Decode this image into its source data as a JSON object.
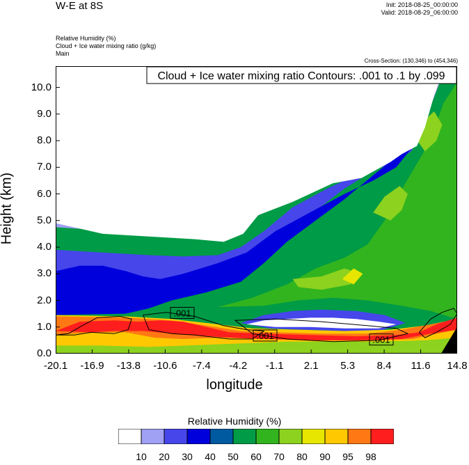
{
  "header": {
    "title": "W-E at 8S",
    "init": "Init: 2018-08-25_00:00:00",
    "valid": "Valid: 2018-08-29_06:00:00",
    "fields": [
      "Relative Humidity   (%)",
      "Cloud + Ice water mixing ratio   (g/kg)",
      "Main"
    ],
    "cross_section": "Cross-Section: (130,346) to (454,346)"
  },
  "chart_data": {
    "type": "heatmap",
    "title": "W-E at 8S",
    "xlabel": "longitude",
    "ylabel": "Height (km)",
    "xlim": [
      -20.1,
      14.8
    ],
    "ylim": [
      0.0,
      10.8
    ],
    "x_ticks": [
      "-20.1",
      "-16.9",
      "-13.8",
      "-10.6",
      "-7.4",
      "-4.2",
      "-1.1",
      "2.1",
      "5.3",
      "8.4",
      "11.6",
      "14.8"
    ],
    "y_ticks": [
      0.0,
      1.0,
      2.0,
      3.0,
      4.0,
      5.0,
      6.0,
      7.0,
      8.0,
      9.0,
      10.0
    ],
    "y_tick_labels": [
      "0.0",
      "1.0",
      "2.0",
      "3.0",
      "4.0",
      "5.0",
      "6.0",
      "7.0",
      "8.0",
      "9.0",
      "10.0"
    ],
    "contour_title": "Cloud + Ice water mixing ratio Contours: .001 to .1 by .099",
    "contour_labels": [
      {
        "text": ".001",
        "x": -10.0,
        "y": 1.4
      },
      {
        "text": ".001",
        "x": -2.8,
        "y": 0.55
      },
      {
        "text": ".001",
        "x": 7.3,
        "y": 0.4
      }
    ],
    "colorbar": {
      "title": "Relative Humidity  (%)",
      "levels": [
        "10",
        "20",
        "30",
        "40",
        "50",
        "60",
        "70",
        "80",
        "90",
        "95",
        "98"
      ],
      "colors": [
        "#ffffff",
        "#a0a0f5",
        "#4646eb",
        "#0000dc",
        "#005aa0",
        "#009b46",
        "#32b41e",
        "#8cd21e",
        "#e6e600",
        "#ffc800",
        "#ff7814",
        "#ff1e1e"
      ]
    },
    "rh_regions": {
      "upper_dry_top": [
        [
          -20.1,
          10.8
        ],
        [
          14.8,
          10.8
        ],
        [
          14.8,
          10.6
        ],
        [
          13.4,
          10.4
        ],
        [
          12.8,
          9.7
        ],
        [
          12.0,
          8.5
        ],
        [
          11.3,
          7.8
        ],
        [
          10.0,
          7.5
        ],
        [
          9.0,
          7.2
        ],
        [
          6.5,
          6.6
        ],
        [
          4.0,
          6.4
        ],
        [
          0.5,
          5.7
        ],
        [
          -2.5,
          5.2
        ],
        [
          -3.8,
          4.5
        ],
        [
          -5.5,
          4.2
        ],
        [
          -8.0,
          4.3
        ],
        [
          -12.0,
          4.4
        ],
        [
          -16.0,
          4.5
        ],
        [
          -20.1,
          4.9
        ]
      ],
      "l20": [
        [
          -20.1,
          10.1
        ],
        [
          -19.0,
          9.1
        ],
        [
          -16.0,
          9.0
        ],
        [
          -12.0,
          9.1
        ],
        [
          -8.0,
          9.35
        ],
        [
          -5.0,
          9.6
        ],
        [
          -3.0,
          9.85
        ],
        [
          -1.5,
          10.25
        ],
        [
          -1.0,
          10.8
        ],
        [
          14.8,
          10.8
        ],
        [
          14.8,
          10.7
        ],
        [
          13.3,
          10.2
        ],
        [
          12.5,
          9.3
        ],
        [
          11.7,
          8.3
        ],
        [
          10.7,
          7.7
        ],
        [
          9.0,
          7.4
        ],
        [
          6.5,
          7.0
        ],
        [
          4.0,
          6.5
        ],
        [
          0.8,
          5.9
        ],
        [
          -2.2,
          5.3
        ],
        [
          -4.0,
          4.6
        ],
        [
          -6.0,
          4.3
        ],
        [
          -9.0,
          4.5
        ],
        [
          -13.0,
          4.6
        ],
        [
          -16.5,
          4.65
        ],
        [
          -20.1,
          4.75
        ]
      ],
      "l30": [
        [
          -20.1,
          3.9
        ],
        [
          -16.0,
          3.8
        ],
        [
          -12.0,
          3.7
        ],
        [
          -9.0,
          3.65
        ],
        [
          -6.0,
          3.7
        ],
        [
          -4.0,
          4.0
        ],
        [
          -2.0,
          4.6
        ],
        [
          0.5,
          5.5
        ],
        [
          3.5,
          6.2
        ],
        [
          6.5,
          6.8
        ],
        [
          9.0,
          7.1
        ],
        [
          10.8,
          7.6
        ],
        [
          11.8,
          8.4
        ],
        [
          12.6,
          9.4
        ],
        [
          13.0,
          10.0
        ],
        [
          12.5,
          9.9
        ],
        [
          11.5,
          8.6
        ],
        [
          10.0,
          7.6
        ],
        [
          8.0,
          7.0
        ],
        [
          5.0,
          6.2
        ],
        [
          2.0,
          5.2
        ],
        [
          -0.5,
          4.4
        ],
        [
          -2.5,
          3.6
        ],
        [
          -5.0,
          3.0
        ],
        [
          -8.0,
          2.8
        ],
        [
          -11.0,
          2.5
        ],
        [
          -13.0,
          2.1
        ],
        [
          -15.0,
          1.9
        ],
        [
          -20.1,
          1.7
        ]
      ],
      "l40": [
        [
          -20.1,
          3.1
        ],
        [
          -18.0,
          3.3
        ],
        [
          -16.0,
          3.3
        ],
        [
          -14.0,
          3.1
        ],
        [
          -12.5,
          2.9
        ],
        [
          -11.0,
          2.8
        ],
        [
          -9.0,
          3.0
        ],
        [
          -6.0,
          3.4
        ],
        [
          -3.5,
          3.8
        ],
        [
          -1.0,
          4.6
        ],
        [
          2.0,
          5.3
        ],
        [
          5.0,
          6.0
        ],
        [
          7.5,
          6.5
        ],
        [
          9.5,
          7.0
        ],
        [
          11.0,
          7.8
        ],
        [
          12.0,
          8.8
        ],
        [
          12.6,
          9.8
        ],
        [
          12.0,
          8.9
        ],
        [
          10.8,
          8.0
        ],
        [
          9.5,
          7.4
        ],
        [
          7.5,
          6.7
        ],
        [
          5.0,
          5.8
        ],
        [
          2.5,
          5.0
        ],
        [
          0.0,
          4.2
        ],
        [
          -2.0,
          3.4
        ],
        [
          -4.0,
          2.7
        ],
        [
          -7.0,
          2.3
        ],
        [
          -10.0,
          2.0
        ],
        [
          -12.0,
          1.7
        ],
        [
          -14.0,
          1.5
        ],
        [
          -20.1,
          1.45
        ]
      ],
      "l60": [
        [
          -12.0,
          1.55
        ],
        [
          -9.0,
          1.9
        ],
        [
          -6.0,
          2.2
        ],
        [
          -3.0,
          2.6
        ],
        [
          -0.5,
          3.2
        ],
        [
          2.0,
          4.0
        ],
        [
          4.5,
          4.8
        ],
        [
          7.0,
          5.6
        ],
        [
          9.0,
          6.3
        ],
        [
          10.5,
          7.0
        ],
        [
          11.5,
          7.8
        ],
        [
          12.3,
          8.7
        ],
        [
          13.0,
          9.6
        ],
        [
          13.7,
          10.5
        ],
        [
          14.8,
          10.8
        ],
        [
          14.8,
          1.2
        ],
        [
          12.0,
          1.5
        ],
        [
          10.0,
          1.4
        ],
        [
          7.0,
          1.45
        ],
        [
          4.0,
          1.6
        ],
        [
          1.0,
          1.7
        ],
        [
          -2.0,
          1.6
        ],
        [
          -5.0,
          1.5
        ],
        [
          -9.0,
          1.45
        ]
      ],
      "l70": [
        [
          -6.0,
          1.75
        ],
        [
          -3.0,
          2.1
        ],
        [
          0.0,
          2.6
        ],
        [
          2.5,
          3.2
        ],
        [
          5.0,
          3.6
        ],
        [
          7.0,
          4.1
        ],
        [
          8.5,
          5.0
        ],
        [
          9.5,
          5.8
        ],
        [
          10.7,
          6.7
        ],
        [
          11.8,
          7.5
        ],
        [
          12.7,
          8.3
        ],
        [
          13.6,
          9.4
        ],
        [
          14.8,
          10.2
        ],
        [
          14.8,
          1.3
        ],
        [
          12.5,
          1.6
        ],
        [
          10.0,
          1.8
        ],
        [
          7.0,
          2.0
        ],
        [
          4.0,
          2.1
        ],
        [
          1.0,
          2.0
        ],
        [
          -2.0,
          1.8
        ]
      ],
      "l80": [
        [
          7.5,
          5.3
        ],
        [
          9.0,
          5.0
        ],
        [
          10.0,
          5.4
        ],
        [
          10.5,
          6.0
        ],
        [
          9.8,
          6.3
        ],
        [
          8.5,
          5.9
        ]
      ],
      "l80b": [
        [
          11.0,
          8.2
        ],
        [
          12.0,
          7.6
        ],
        [
          13.0,
          8.0
        ],
        [
          13.5,
          8.6
        ],
        [
          12.8,
          9.1
        ],
        [
          11.8,
          8.7
        ]
      ],
      "l80c": [
        [
          0.5,
          2.8
        ],
        [
          3.0,
          2.9
        ],
        [
          5.0,
          3.2
        ],
        [
          6.5,
          3.0
        ],
        [
          5.5,
          2.6
        ],
        [
          3.0,
          2.4
        ],
        [
          1.0,
          2.5
        ]
      ],
      "l90": [
        [
          4.8,
          2.8
        ],
        [
          5.8,
          3.2
        ],
        [
          6.6,
          3.0
        ],
        [
          5.8,
          2.6
        ]
      ],
      "mid_dry": [
        [
          -3.5,
          1.1
        ],
        [
          -2.0,
          1.25
        ],
        [
          0.0,
          1.3
        ],
        [
          2.0,
          1.35
        ],
        [
          4.0,
          1.35
        ],
        [
          6.0,
          1.3
        ],
        [
          8.0,
          1.2
        ],
        [
          9.5,
          1.1
        ],
        [
          8.0,
          0.95
        ],
        [
          5.0,
          0.95
        ],
        [
          2.0,
          1.0
        ],
        [
          -1.0,
          1.0
        ]
      ],
      "mid_blue": [
        [
          -4.0,
          1.15
        ],
        [
          -2.0,
          1.45
        ],
        [
          0.5,
          1.6
        ],
        [
          3.0,
          1.65
        ],
        [
          6.0,
          1.6
        ],
        [
          8.5,
          1.45
        ],
        [
          10.3,
          1.15
        ],
        [
          8.0,
          0.85
        ],
        [
          5.0,
          0.85
        ],
        [
          1.5,
          0.9
        ],
        [
          -1.5,
          0.95
        ]
      ],
      "low_green": [
        [
          -20.1,
          0.0
        ],
        [
          14.8,
          0.0
        ],
        [
          14.8,
          1.0
        ],
        [
          12.0,
          0.9
        ],
        [
          10.0,
          0.75
        ],
        [
          6.0,
          0.7
        ],
        [
          2.0,
          0.75
        ],
        [
          -2.0,
          0.85
        ],
        [
          -5.0,
          0.95
        ],
        [
          -9.0,
          1.15
        ],
        [
          -13.0,
          1.35
        ],
        [
          -20.1,
          1.45
        ]
      ],
      "low_yellow": [
        [
          -20.1,
          0.3
        ],
        [
          -16.0,
          0.3
        ],
        [
          -12.0,
          0.25
        ],
        [
          -9.0,
          0.3
        ],
        [
          -6.0,
          0.35
        ],
        [
          -3.0,
          0.4
        ],
        [
          0.0,
          0.45
        ],
        [
          4.0,
          0.45
        ],
        [
          8.0,
          0.45
        ],
        [
          12.0,
          0.5
        ],
        [
          14.8,
          0.6
        ],
        [
          14.8,
          1.25
        ],
        [
          12.0,
          1.05
        ],
        [
          9.0,
          0.9
        ],
        [
          5.0,
          0.85
        ],
        [
          1.0,
          0.9
        ],
        [
          -3.0,
          0.95
        ],
        [
          -6.0,
          1.1
        ],
        [
          -10.0,
          1.3
        ],
        [
          -14.0,
          1.4
        ],
        [
          -20.1,
          1.45
        ]
      ],
      "low_orange": [
        [
          -20.1,
          0.7
        ],
        [
          -17.0,
          0.8
        ],
        [
          -14.0,
          0.8
        ],
        [
          -11.5,
          0.6
        ],
        [
          -9.0,
          0.55
        ],
        [
          -6.0,
          0.6
        ],
        [
          -3.0,
          0.6
        ],
        [
          0.0,
          0.55
        ],
        [
          4.0,
          0.5
        ],
        [
          8.0,
          0.5
        ],
        [
          11.0,
          0.55
        ],
        [
          12.5,
          0.7
        ],
        [
          14.8,
          0.9
        ],
        [
          14.8,
          1.3
        ],
        [
          12.5,
          1.1
        ],
        [
          10.0,
          0.9
        ],
        [
          7.0,
          0.75
        ],
        [
          3.0,
          0.75
        ],
        [
          -1.0,
          0.8
        ],
        [
          -4.0,
          0.85
        ],
        [
          -7.0,
          1.05
        ],
        [
          -10.0,
          1.25
        ],
        [
          -14.0,
          1.35
        ],
        [
          -20.1,
          1.4
        ]
      ],
      "low_red": [
        [
          -20.1,
          0.85
        ],
        [
          -18.0,
          1.2
        ],
        [
          -15.0,
          1.25
        ],
        [
          -13.0,
          1.2
        ],
        [
          -11.0,
          1.25
        ],
        [
          -9.0,
          1.2
        ],
        [
          -7.0,
          1.0
        ],
        [
          -5.0,
          0.8
        ],
        [
          -2.0,
          0.75
        ],
        [
          2.0,
          0.7
        ],
        [
          6.0,
          0.65
        ],
        [
          9.5,
          0.7
        ],
        [
          11.5,
          0.8
        ],
        [
          13.0,
          1.1
        ],
        [
          14.8,
          1.35
        ],
        [
          14.8,
          0.9
        ],
        [
          12.5,
          0.75
        ],
        [
          10.0,
          0.55
        ],
        [
          6.0,
          0.5
        ],
        [
          2.0,
          0.5
        ],
        [
          -2.0,
          0.55
        ],
        [
          -5.0,
          0.6
        ],
        [
          -8.0,
          0.7
        ],
        [
          -10.0,
          0.75
        ],
        [
          -12.5,
          0.85
        ],
        [
          -15.0,
          0.85
        ],
        [
          -17.0,
          0.8
        ]
      ],
      "corner_black": [
        [
          13.4,
          0.0
        ],
        [
          14.8,
          0.0
        ],
        [
          14.8,
          1.0
        ]
      ]
    },
    "cloud_contours": [
      [
        [
          -20.1,
          0.7
        ],
        [
          -19.0,
          0.75
        ],
        [
          -18.0,
          1.0
        ],
        [
          -16.5,
          1.35
        ],
        [
          -14.5,
          1.4
        ],
        [
          -13.5,
          1.3
        ],
        [
          -13.8,
          0.9
        ],
        [
          -15.0,
          0.75
        ],
        [
          -17.0,
          0.8
        ],
        [
          -18.5,
          0.7
        ]
      ],
      [
        [
          -12.5,
          1.45
        ],
        [
          -10.5,
          1.55
        ],
        [
          -8.0,
          1.4
        ],
        [
          -5.5,
          1.05
        ],
        [
          -3.5,
          0.9
        ],
        [
          -2.0,
          0.85
        ],
        [
          -3.0,
          0.55
        ],
        [
          -5.0,
          0.55
        ],
        [
          -8.0,
          0.7
        ],
        [
          -10.0,
          0.75
        ],
        [
          -12.0,
          0.9
        ]
      ],
      [
        [
          -4.5,
          1.25
        ],
        [
          -1.0,
          1.3
        ],
        [
          3.0,
          1.2
        ],
        [
          7.0,
          1.05
        ],
        [
          9.5,
          0.95
        ],
        [
          10.5,
          0.75
        ],
        [
          8.0,
          0.5
        ],
        [
          4.0,
          0.45
        ],
        [
          0.0,
          0.55
        ],
        [
          -3.0,
          0.75
        ]
      ],
      [
        [
          11.5,
          0.8
        ],
        [
          12.5,
          1.3
        ],
        [
          13.5,
          1.55
        ],
        [
          14.5,
          1.7
        ],
        [
          14.8,
          1.5
        ],
        [
          14.2,
          1.1
        ],
        [
          13.0,
          0.8
        ],
        [
          12.0,
          0.6
        ]
      ]
    ]
  }
}
